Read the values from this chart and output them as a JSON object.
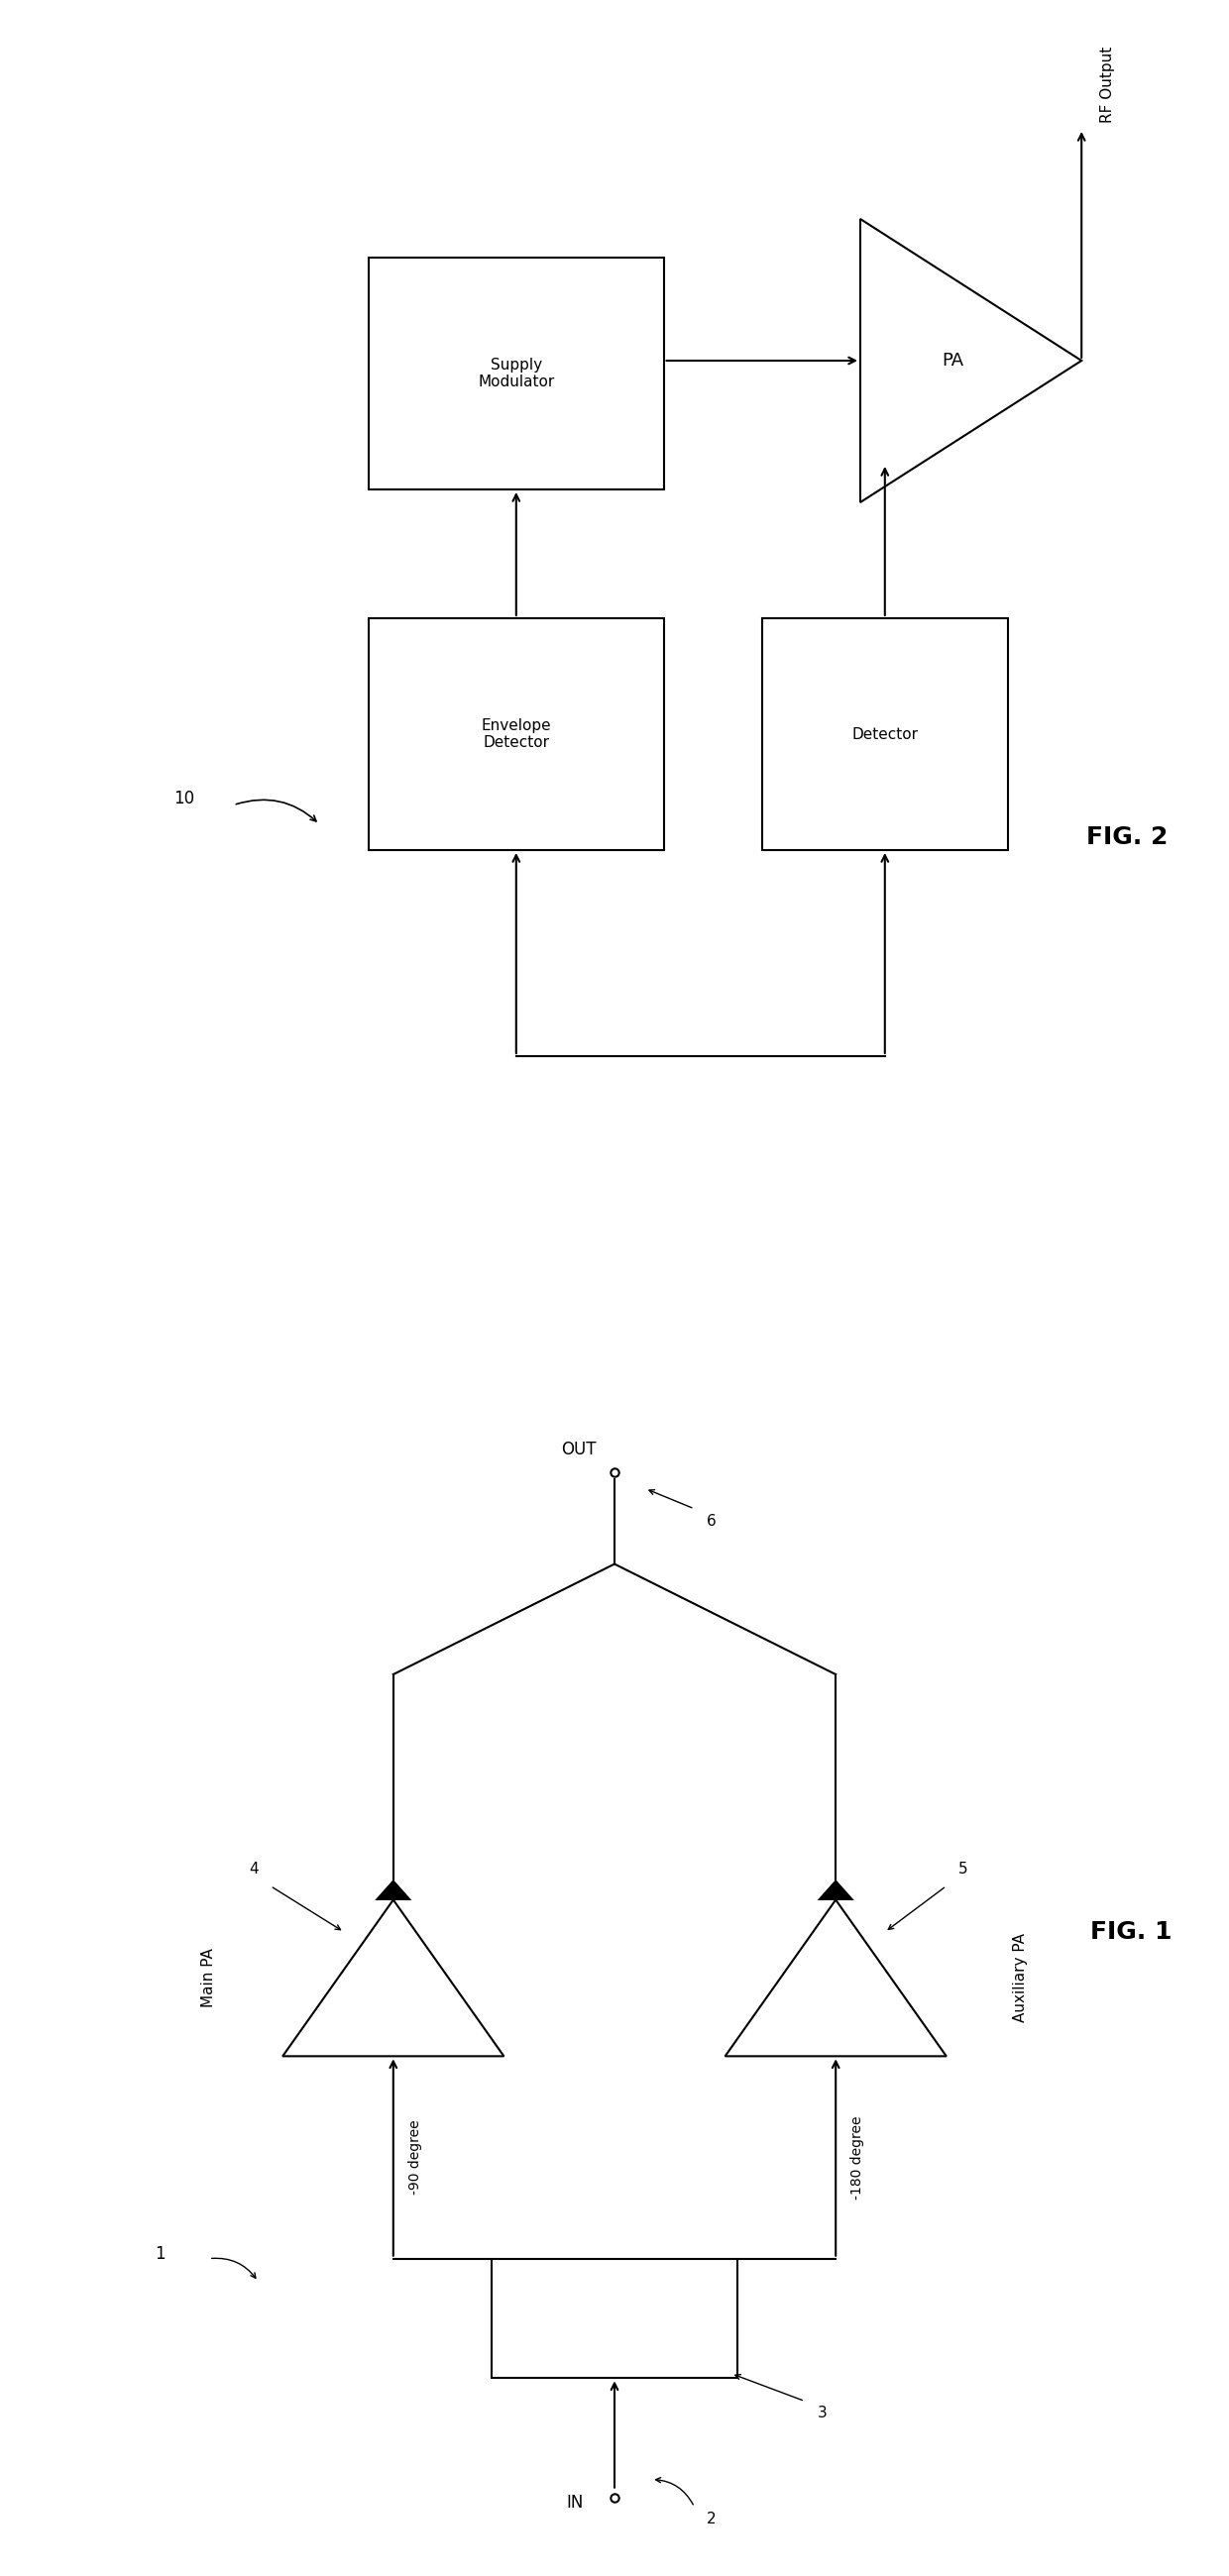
{
  "fig1": {
    "title": "FIG. 1",
    "label_1": "1",
    "label_2": "2",
    "label_3": "3",
    "label_4": "4",
    "label_5": "5",
    "label_6": "6",
    "label_in": "IN",
    "label_out": "OUT",
    "label_main_pa": "Main PA",
    "label_aux_pa": "Auxiliary PA",
    "label_90": "-90 degree",
    "label_180": "-180 degree"
  },
  "fig2": {
    "title": "FIG. 2",
    "label_10": "10",
    "label_supply_mod": "Supply\nModulator",
    "label_envelope": "Envelope\nDetector",
    "label_detector": "Detector",
    "label_pa": "PA",
    "label_rf_output": "RF Output"
  },
  "line_color": "#000000",
  "bg_color": "#ffffff",
  "fontsize": 11,
  "title_fontsize": 18
}
